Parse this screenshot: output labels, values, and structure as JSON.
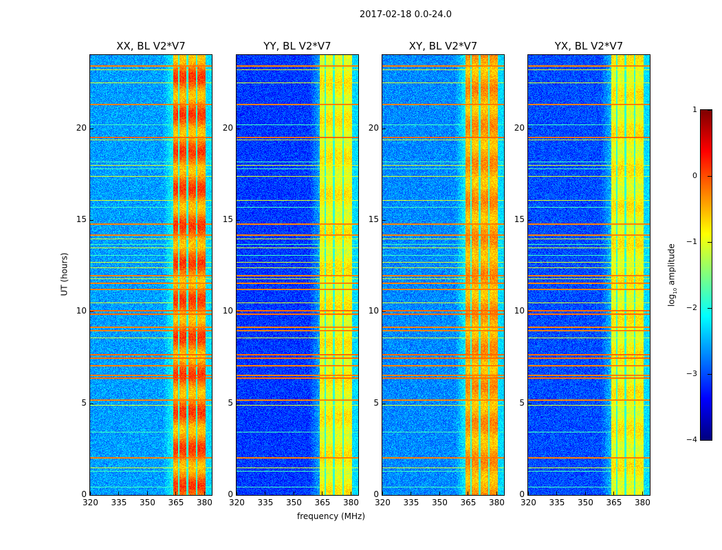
{
  "suptitle": "2017-02-18 0.0-24.0",
  "ylabel": "UT (hours)",
  "xlabel": "frequency (MHz)",
  "colorbar": {
    "label": "log10 amplitude",
    "label_main": "log",
    "label_sub": "10",
    "label_rest": " amplitude",
    "range": [
      -4,
      1
    ],
    "ticks": [
      "1",
      "0",
      "−1",
      "−2",
      "−3",
      "−4"
    ],
    "tick_values": [
      1,
      0,
      -1,
      -2,
      -3,
      -4
    ],
    "colormap": "jet"
  },
  "chart_data": {
    "type": "heatmap",
    "xlim": [
      320,
      384
    ],
    "ylim": [
      0,
      24
    ],
    "xticks": [
      320,
      335,
      350,
      365,
      380
    ],
    "yticks": [
      0,
      5,
      10,
      15,
      20
    ],
    "xtick_labels": [
      "320",
      "335",
      "350",
      "365",
      "380"
    ],
    "ytick_labels": [
      "0",
      "5",
      "10",
      "15",
      "20"
    ],
    "panels": [
      {
        "title": "XX, BL V2*V7",
        "background_level": -2.6,
        "band_level": -0.25
      },
      {
        "title": "YY, BL V2*V7",
        "background_level": -3.1,
        "band_level": -0.9
      },
      {
        "title": "XY, BL V2*V7",
        "background_level": -2.7,
        "band_level": -0.45
      },
      {
        "title": "YX, BL V2*V7",
        "background_level": -3.0,
        "band_level": -0.9
      }
    ],
    "band_mhz": [
      363.5,
      380.5
    ],
    "band_gaps_mhz": [
      366.4,
      371.0,
      375.8
    ],
    "rfi_lines": [
      [
        23.45,
        -0.2
      ],
      [
        23.2,
        -1.0
      ],
      [
        22.5,
        -1.0
      ],
      [
        21.35,
        -0.2
      ],
      [
        20.2,
        -1.8
      ],
      [
        19.55,
        -0.1
      ],
      [
        19.4,
        -1.0
      ],
      [
        18.2,
        -1.8
      ],
      [
        18.0,
        -1.0
      ],
      [
        17.8,
        -1.8
      ],
      [
        17.4,
        -1.0
      ],
      [
        16.1,
        -1.0
      ],
      [
        15.7,
        -1.8
      ],
      [
        14.8,
        -0.2
      ],
      [
        14.2,
        -0.2
      ],
      [
        14.0,
        -1.0
      ],
      [
        13.7,
        -1.8
      ],
      [
        13.5,
        -1.0
      ],
      [
        13.1,
        -1.8
      ],
      [
        12.7,
        -1.0
      ],
      [
        12.4,
        -1.0
      ],
      [
        12.0,
        -0.2
      ],
      [
        11.8,
        -1.0
      ],
      [
        11.6,
        -0.2
      ],
      [
        11.25,
        -0.2
      ],
      [
        10.5,
        -1.0
      ],
      [
        10.1,
        -0.1
      ],
      [
        9.9,
        -0.1
      ],
      [
        9.2,
        -0.2
      ],
      [
        9.0,
        -0.2
      ],
      [
        8.6,
        -1.0
      ],
      [
        7.7,
        -0.1
      ],
      [
        7.5,
        -0.1
      ],
      [
        7.1,
        -0.2
      ],
      [
        6.55,
        -0.2
      ],
      [
        6.4,
        -0.1
      ],
      [
        5.2,
        -0.2
      ],
      [
        4.9,
        -1.0
      ],
      [
        3.45,
        -1.8
      ],
      [
        2.05,
        -0.2
      ],
      [
        1.5,
        -1.0
      ],
      [
        1.3,
        -1.8
      ],
      [
        0.45,
        -1.8
      ]
    ]
  }
}
